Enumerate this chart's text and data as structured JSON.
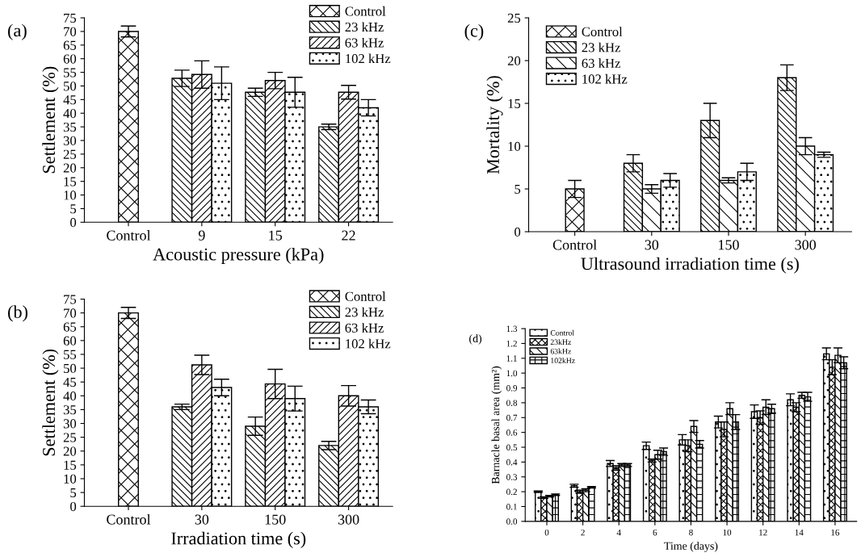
{
  "chart_data": [
    {
      "type": "bar",
      "annotations": [
        "(a)"
      ],
      "xlabel": "Acoustic pressure (kPa)",
      "ylabel": "Settlement (%)",
      "categories": [
        "Control",
        "9",
        "15",
        "22"
      ],
      "ylim": [
        0,
        75
      ],
      "yticks": [
        0,
        5,
        10,
        15,
        20,
        25,
        30,
        35,
        40,
        45,
        50,
        55,
        60,
        65,
        70,
        75
      ],
      "legend": "top right",
      "grid": false,
      "series": [
        {
          "name": "Control",
          "color": "#000000",
          "values": [
            70,
            null,
            null,
            null
          ],
          "errors": [
            2,
            null,
            null,
            null
          ]
        },
        {
          "name": "23 kHz",
          "color": "#000000",
          "values": [
            null,
            52.8,
            47.7,
            35
          ],
          "errors": [
            null,
            3,
            1.5,
            1
          ]
        },
        {
          "name": "63 kHz",
          "color": "#000000",
          "values": [
            null,
            54.2,
            52,
            47.7
          ],
          "errors": [
            null,
            5,
            3,
            2.5
          ]
        },
        {
          "name": "102 kHz",
          "color": "#000000",
          "values": [
            null,
            51,
            47.7,
            42
          ],
          "errors": [
            null,
            6,
            5.5,
            3
          ]
        }
      ]
    },
    {
      "type": "bar",
      "annotations": [
        "(b)"
      ],
      "xlabel": "Irradiation time (s)",
      "ylabel": "Settlement (%)",
      "categories": [
        "Control",
        "30",
        "150",
        "300"
      ],
      "ylim": [
        0,
        75
      ],
      "yticks": [
        0,
        5,
        10,
        15,
        20,
        25,
        30,
        35,
        40,
        45,
        50,
        55,
        60,
        65,
        70,
        75
      ],
      "legend": "top right",
      "grid": false,
      "series": [
        {
          "name": "Control",
          "color": "#000000",
          "values": [
            70,
            null,
            null,
            null
          ],
          "errors": [
            2,
            null,
            null,
            null
          ]
        },
        {
          "name": "23 kHz",
          "color": "#000000",
          "values": [
            null,
            36,
            29,
            22
          ],
          "errors": [
            null,
            1,
            3.3,
            1.5
          ]
        },
        {
          "name": "63 kHz",
          "color": "#000000",
          "values": [
            null,
            51.2,
            44.3,
            40
          ],
          "errors": [
            null,
            3.5,
            5.3,
            3.7
          ]
        },
        {
          "name": "102 kHz",
          "color": "#000000",
          "values": [
            null,
            43,
            39,
            36
          ],
          "errors": [
            null,
            3,
            4.5,
            2.5
          ]
        }
      ]
    },
    {
      "type": "bar",
      "annotations": [
        "(c)"
      ],
      "xlabel": "Ultrasound irradiation time (s)",
      "ylabel": "Mortality (%)",
      "categories": [
        "Control",
        "30",
        "150",
        "300"
      ],
      "ylim": [
        0,
        25
      ],
      "yticks": [
        0,
        5,
        10,
        15,
        20,
        25
      ],
      "legend": "top left",
      "grid": false,
      "series": [
        {
          "name": "Control",
          "color": "#000000",
          "values": [
            5,
            null,
            null,
            null
          ],
          "errors": [
            1,
            null,
            null,
            null
          ]
        },
        {
          "name": "23 kHz",
          "color": "#000000",
          "values": [
            null,
            8,
            13,
            18
          ],
          "errors": [
            null,
            1,
            2,
            1.5
          ]
        },
        {
          "name": "63 kHz",
          "color": "#000000",
          "values": [
            null,
            5,
            6,
            10
          ],
          "errors": [
            null,
            0.5,
            0.3,
            1
          ]
        },
        {
          "name": "102 kHz",
          "color": "#000000",
          "values": [
            null,
            6,
            7,
            9
          ],
          "errors": [
            null,
            0.8,
            1,
            0.3
          ]
        }
      ]
    },
    {
      "type": "bar",
      "annotations": [
        "(d)"
      ],
      "xlabel": "Time (days)",
      "ylabel": "Barnacle basal area (mm²)",
      "categories": [
        "0",
        "2",
        "4",
        "6",
        "8",
        "10",
        "12",
        "14",
        "16"
      ],
      "ylim": [
        0,
        1.3
      ],
      "yticks": [
        {
          "value": 0,
          "label": "0.0"
        },
        0.1,
        0.2,
        0.3,
        0.4,
        0.5,
        0.6,
        0.7,
        0.8,
        0.9,
        {
          "value": 1,
          "label": "1.0"
        },
        1.1,
        1.2,
        1.3
      ],
      "legend": "top left",
      "grid": false,
      "series": [
        {
          "name": "Control",
          "color": "#000000",
          "values": [
            0.2,
            0.24,
            0.39,
            0.51,
            0.55,
            0.67,
            0.74,
            0.82,
            1.13
          ],
          "errors": [
            0.005,
            0.01,
            0.02,
            0.025,
            0.035,
            0.04,
            0.045,
            0.04,
            0.04
          ]
        },
        {
          "name": "23kHz",
          "color": "#000000",
          "values": [
            0.16,
            0.2,
            0.36,
            0.41,
            0.51,
            0.62,
            0.7,
            0.77,
            1.04
          ],
          "errors": [
            0.005,
            0.01,
            0.015,
            0.01,
            0.04,
            0.05,
            0.045,
            0.03,
            0.05
          ]
        },
        {
          "name": "63kHz",
          "color": "#000000",
          "values": [
            0.17,
            0.21,
            0.38,
            0.45,
            0.64,
            0.76,
            0.77,
            0.85,
            1.12
          ],
          "errors": [
            0.005,
            0.01,
            0.01,
            0.03,
            0.04,
            0.04,
            0.05,
            0.02,
            0.05
          ]
        },
        {
          "name": "102kHz",
          "color": "#000000",
          "values": [
            0.18,
            0.23,
            0.38,
            0.47,
            0.52,
            0.67,
            0.76,
            0.84,
            1.07
          ],
          "errors": [
            0.005,
            0.005,
            0.01,
            0.025,
            0.025,
            0.05,
            0.03,
            0.03,
            0.04
          ]
        }
      ]
    }
  ]
}
